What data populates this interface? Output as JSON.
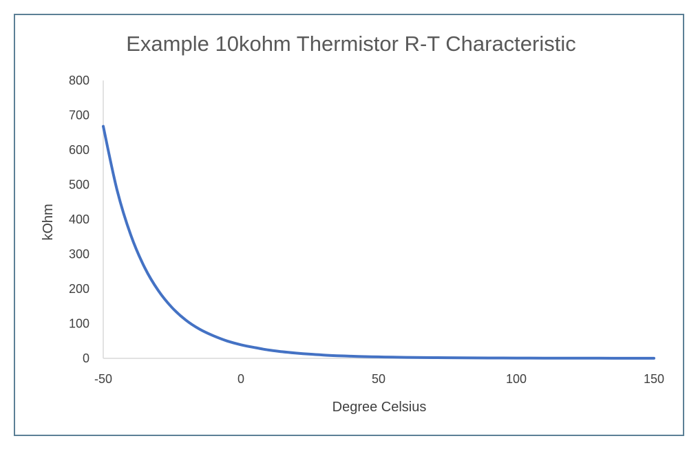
{
  "chart_data": {
    "type": "line",
    "title": "Example 10kohm Thermistor R-T Characteristic",
    "xlabel": "Degree Celsius",
    "ylabel": "kOhm",
    "xlim": [
      -50,
      150
    ],
    "ylim": [
      0,
      800
    ],
    "x_ticks": [
      -50,
      0,
      50,
      100,
      150
    ],
    "y_ticks": [
      0,
      100,
      200,
      300,
      400,
      500,
      600,
      700,
      800
    ],
    "grid": false,
    "legend": "none",
    "series": [
      {
        "color": "#4472c4",
        "x": [
          -50,
          -45,
          -40,
          -35,
          -30,
          -25,
          -20,
          -15,
          -10,
          -5,
          0,
          5,
          10,
          15,
          20,
          25,
          30,
          35,
          40,
          45,
          50,
          55,
          60,
          70,
          80,
          90,
          100,
          110,
          120,
          130,
          140,
          150
        ],
        "y": [
          668,
          485,
          355,
          262,
          195,
          146,
          110,
          84,
          65,
          50,
          39,
          31,
          24,
          19,
          15,
          12,
          9.5,
          7.6,
          6.1,
          5.0,
          4.1,
          3.4,
          2.8,
          2.0,
          1.4,
          1.0,
          0.8,
          0.6,
          0.45,
          0.35,
          0.28,
          0.22
        ]
      }
    ]
  }
}
